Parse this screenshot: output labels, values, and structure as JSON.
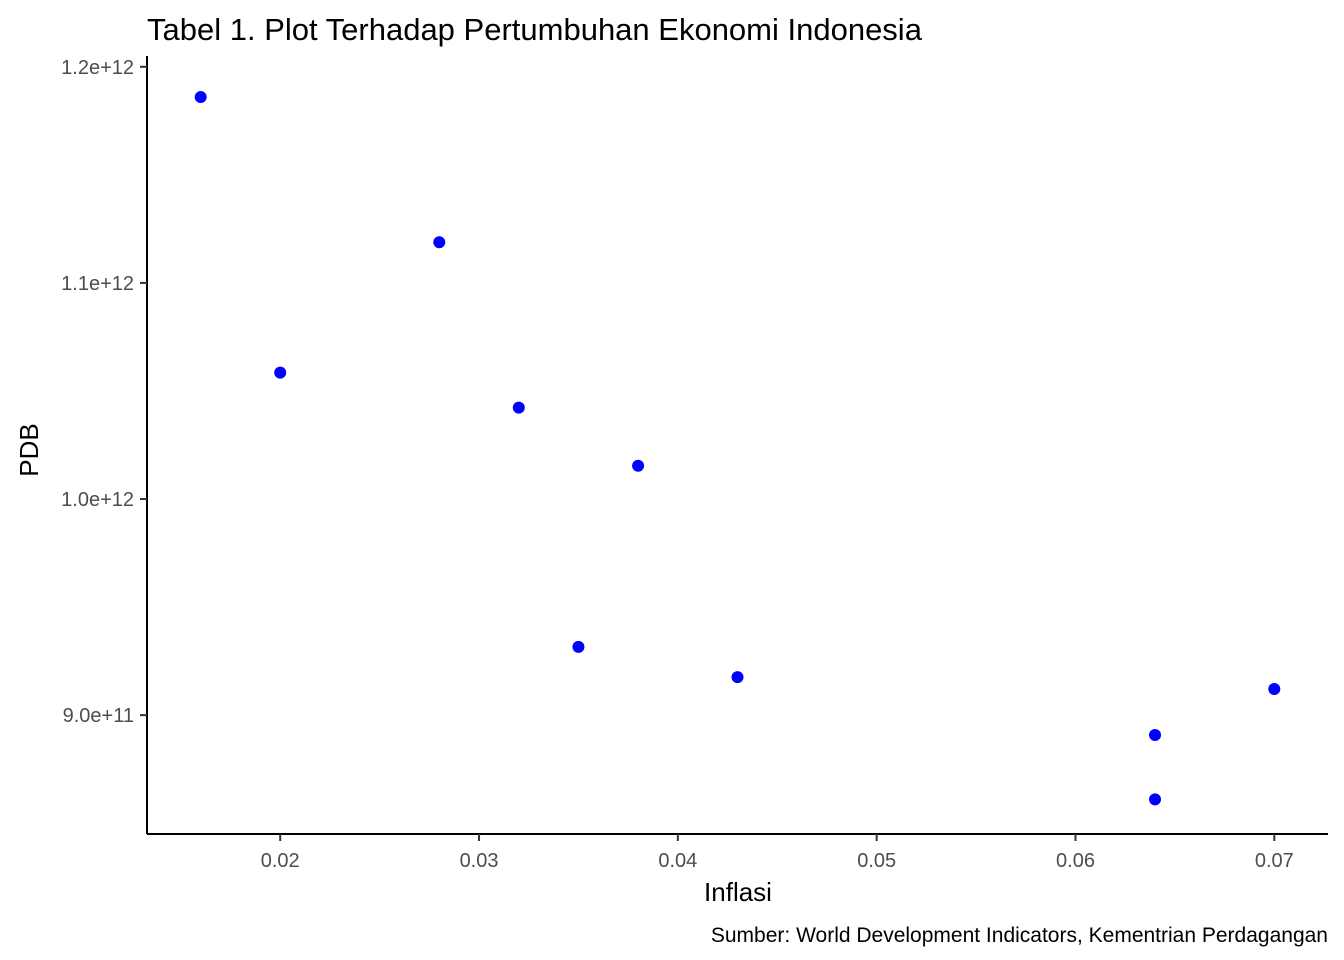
{
  "chart_data": {
    "type": "scatter",
    "title": "Tabel 1. Plot Terhadap Pertumbuhan Ekonomi Indonesia",
    "xlabel": "Inflasi",
    "ylabel": "PDB",
    "caption": "Sumber: World Development Indicators, Kementrian Perdagangan",
    "xlim": [
      0.0133,
      0.0727
    ],
    "ylim": [
      845000000000,
      1205000000000
    ],
    "x_ticks": [
      0.02,
      0.03,
      0.04,
      0.05,
      0.06,
      0.07
    ],
    "x_tick_labels": [
      "0.02",
      "0.03",
      "0.04",
      "0.05",
      "0.06",
      "0.07"
    ],
    "y_ticks": [
      900000000000,
      1000000000000,
      1100000000000,
      1200000000000
    ],
    "y_tick_labels": [
      "9.0e+11",
      "1.0e+12",
      "1.1e+12",
      "1.2e+12"
    ],
    "grid": false,
    "point_color": "#0000ff",
    "points": [
      {
        "x": 0.016,
        "y": 1186000000000
      },
      {
        "x": 0.02,
        "y": 1058500000000
      },
      {
        "x": 0.028,
        "y": 1118800000000
      },
      {
        "x": 0.032,
        "y": 1042300000000
      },
      {
        "x": 0.035,
        "y": 931600000000
      },
      {
        "x": 0.038,
        "y": 1015400000000
      },
      {
        "x": 0.043,
        "y": 917600000000
      },
      {
        "x": 0.064,
        "y": 890800000000
      },
      {
        "x": 0.064,
        "y": 861000000000
      },
      {
        "x": 0.07,
        "y": 912100000000
      }
    ]
  }
}
